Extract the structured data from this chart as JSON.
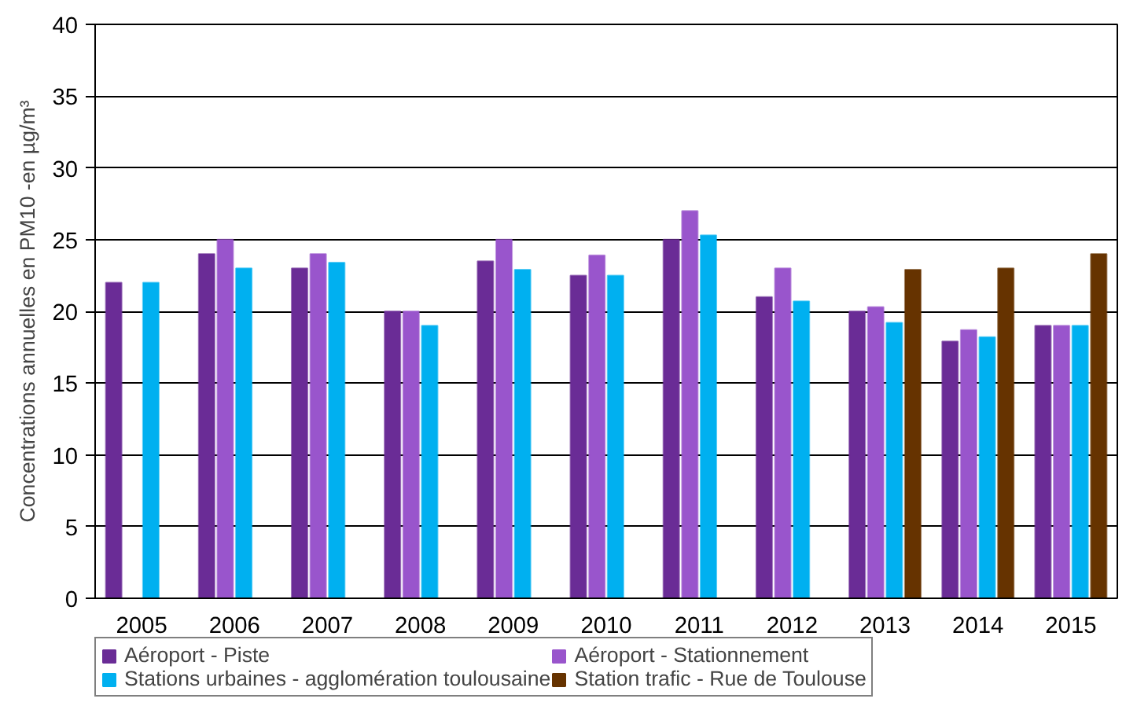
{
  "chart_data": {
    "type": "bar",
    "ylabel": "Concentrations annuelles en PM10 -en µg/m³",
    "categories": [
      "2005",
      "2006",
      "2007",
      "2008",
      "2009",
      "2010",
      "2011",
      "2012",
      "2013",
      "2014",
      "2015"
    ],
    "series": [
      {
        "name": "Aéroport - Piste",
        "color": "#6a2c96",
        "values": [
          22,
          24,
          23,
          20,
          23.5,
          22.5,
          25,
          21,
          20,
          17.9,
          19
        ]
      },
      {
        "name": "Aéroport - Stationnement",
        "color": "#9955cc",
        "values": [
          null,
          25,
          24,
          20,
          25,
          23.9,
          27,
          23,
          20.3,
          18.7,
          19
        ]
      },
      {
        "name": "Stations urbaines - agglomération toulousaine",
        "color": "#00b0f0",
        "values": [
          22,
          23,
          23.4,
          19,
          22.9,
          22.5,
          25.3,
          20.7,
          19.2,
          18.2,
          19
        ]
      },
      {
        "name": "Station trafic - Rue de Toulouse",
        "color": "#663300",
        "values": [
          null,
          null,
          null,
          null,
          null,
          null,
          null,
          null,
          22.9,
          23,
          24
        ]
      }
    ],
    "ylim": [
      0,
      40
    ],
    "yticks": [
      0,
      5,
      10,
      15,
      20,
      25,
      30,
      35,
      40
    ],
    "grid": "y",
    "legend": "bottom"
  }
}
